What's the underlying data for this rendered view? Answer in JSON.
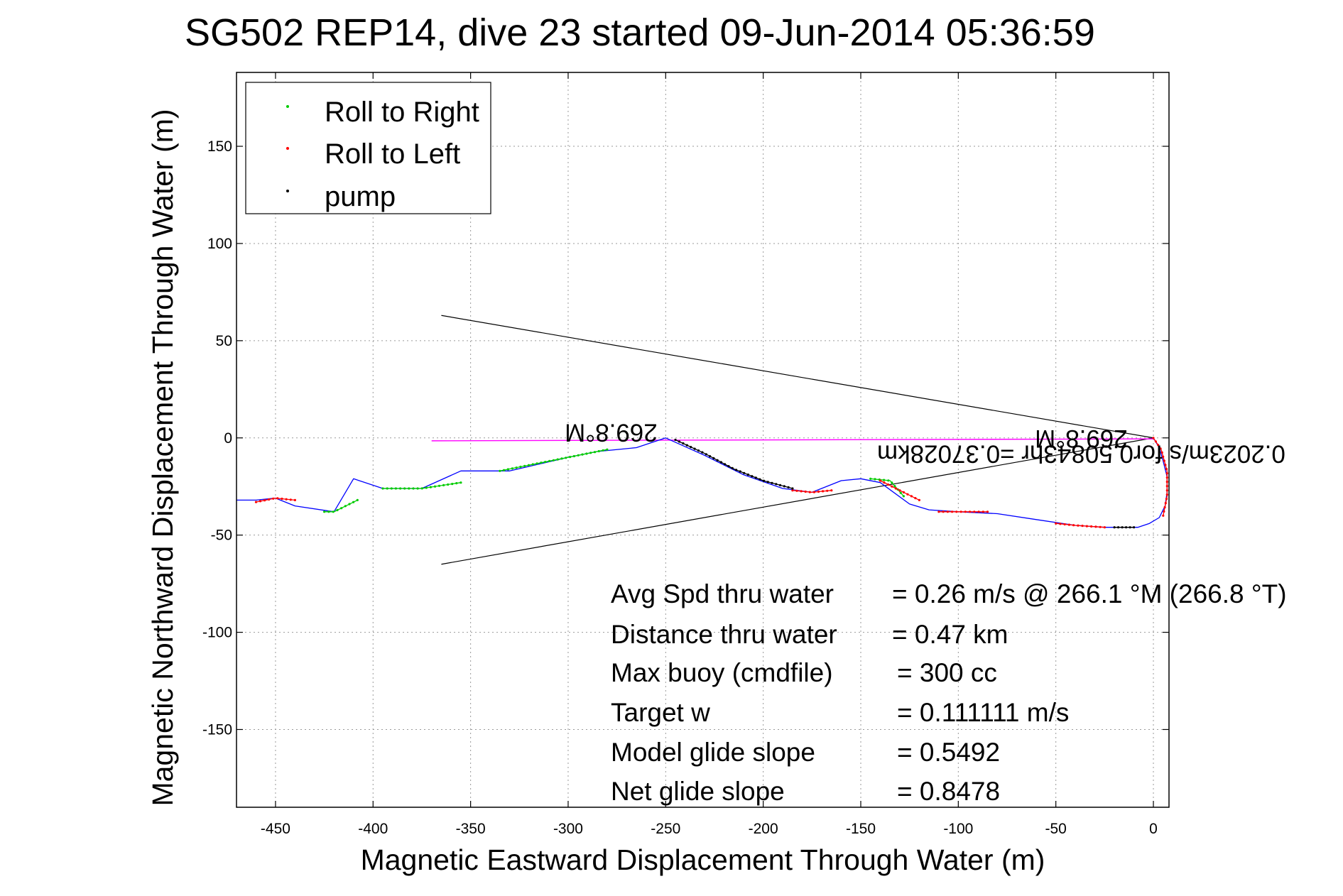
{
  "chart_data": {
    "type": "scatter",
    "title": "SG502 REP14, dive 23 started 09-Jun-2014 05:36:59",
    "xlabel": "Magnetic Eastward Displacement Through Water (m)",
    "ylabel": "Magnetic Northward Displacement Through Water (m)",
    "xlim": [
      -470,
      8
    ],
    "ylim": [
      -190,
      188
    ],
    "x_ticks": [
      -450,
      -400,
      -350,
      -300,
      -250,
      -200,
      -150,
      -100,
      -50,
      0
    ],
    "y_ticks": [
      -150,
      -100,
      -50,
      0,
      50,
      100,
      150
    ],
    "grid": true,
    "legend_position": "top-left",
    "legend": [
      "Roll to Right",
      "Roll to Left",
      "pump"
    ],
    "track": {
      "x": [
        0,
        3,
        5,
        7,
        7,
        6,
        3,
        -2,
        -8,
        -15,
        -25,
        -40,
        -60,
        -80,
        -100,
        -115,
        -125,
        -140,
        -150,
        -160,
        -175,
        -190,
        -210,
        -230,
        -250,
        -265,
        -285,
        -300,
        -330,
        -355,
        -375,
        -395,
        -410,
        -420,
        -440,
        -450,
        -460,
        -470
      ],
      "y": [
        0,
        -5,
        -12,
        -20,
        -28,
        -35,
        -41,
        -44,
        -46,
        -46,
        -46,
        -45,
        -42,
        -39,
        -38,
        -37,
        -34,
        -23,
        -21,
        -22,
        -28,
        -26,
        -19,
        -9,
        0,
        -5,
        -7,
        -10,
        -17,
        -17,
        -26,
        -26,
        -21,
        -38,
        -35,
        -31,
        -32,
        -32
      ]
    },
    "roll_right_segments": [
      {
        "x": [
          -145,
          -135,
          -128
        ],
        "y": [
          -21,
          -22,
          -30
        ]
      },
      {
        "x": [
          -280,
          -300,
          -335
        ],
        "y": [
          -6,
          -10,
          -17
        ]
      },
      {
        "x": [
          -355,
          -375,
          -395
        ],
        "y": [
          -23,
          -26,
          -26
        ]
      },
      {
        "x": [
          -408,
          -420,
          -425
        ],
        "y": [
          -32,
          -38,
          -38
        ]
      }
    ],
    "roll_left_segments": [
      {
        "x": [
          -25,
          -40,
          -50
        ],
        "y": [
          -46,
          -45,
          -44
        ]
      },
      {
        "x": [
          0,
          4,
          7,
          7,
          5
        ],
        "y": [
          0,
          -6,
          -17,
          -30,
          -40
        ]
      },
      {
        "x": [
          -85,
          -100,
          -110
        ],
        "y": [
          -38,
          -38,
          -38
        ]
      },
      {
        "x": [
          -120,
          -128,
          -140
        ],
        "y": [
          -32,
          -28,
          -22
        ]
      },
      {
        "x": [
          -165,
          -175,
          -185
        ],
        "y": [
          -27,
          -28,
          -27
        ]
      },
      {
        "x": [
          -440,
          -450,
          -460
        ],
        "y": [
          -32,
          -31,
          -33
        ]
      }
    ],
    "pump_segments": [
      {
        "x": [
          -185,
          -200,
          -215,
          -230,
          -245
        ],
        "y": [
          -26,
          -22,
          -16,
          -8,
          -1
        ]
      },
      {
        "x": [
          -10,
          -20
        ],
        "y": [
          -46,
          -46
        ]
      }
    ],
    "heading_line": {
      "x": [
        -370,
        0
      ],
      "y": [
        -1.5,
        -0.5
      ]
    },
    "wedge_lines": [
      {
        "x": [
          0,
          -365
        ],
        "y": [
          0,
          63
        ]
      },
      {
        "x": [
          0,
          -365
        ],
        "y": [
          0,
          -65
        ]
      }
    ],
    "heading_labels": [
      {
        "text": "269.8°M",
        "x": -278,
        "y": 7
      },
      {
        "text": "269.8°M",
        "x": -37,
        "y": 4
      }
    ],
    "speed_label": {
      "text": "0.2023m/s for0.50843hr =0.37028km",
      "x": -37,
      "y": -4
    },
    "colors": {
      "track": "#0000ff",
      "roll_right": "#00cc00",
      "roll_left": "#ff0000",
      "pump": "#000000",
      "heading_line": "#ff00ff",
      "wedge": "#000000"
    }
  },
  "stats": [
    {
      "label": "Avg Spd thru water",
      "value": "=  0.26 m/s @ 266.1 °M (266.8 °T)"
    },
    {
      "label": "Distance thru water",
      "value": "=  0.47 km"
    },
    {
      "label": "Max buoy (cmdfile)",
      "value": "= 300 cc"
    },
    {
      "label": "Target w",
      "value": "= 0.111111 m/s"
    },
    {
      "label": "Model glide slope",
      "value": "= 0.5492"
    },
    {
      "label": "Net glide slope",
      "value": "= 0.8478"
    }
  ]
}
